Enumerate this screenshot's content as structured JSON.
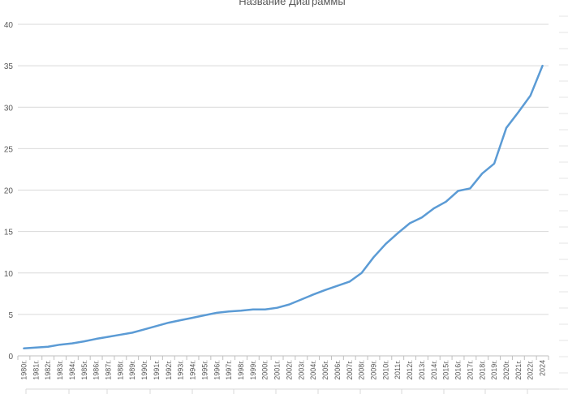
{
  "chart_data": {
    "type": "line",
    "title": "Название Диаграммы",
    "xlabel": "",
    "ylabel": "",
    "ylim": [
      0,
      40
    ],
    "yticks": [
      0,
      5,
      10,
      15,
      20,
      25,
      30,
      35,
      40
    ],
    "grid": true,
    "legend": "none",
    "line_color": "#5b9bd5",
    "categories": [
      "1980г.",
      "1981г.",
      "1982г.",
      "1983г.",
      "1984г.",
      "1985г.",
      "1986г.",
      "1987г.",
      "1988г.",
      "1989г.",
      "1990г.",
      "1991г.",
      "1992г.",
      "1993г.",
      "1994г.",
      "1995г.",
      "1996г.",
      "1997г.",
      "1998г.",
      "1999г.",
      "2000г.",
      "2001г.",
      "2002г.",
      "2003г.",
      "2004г.",
      "2005г.",
      "2006г.",
      "2007г.",
      "2008г.",
      "2009г.",
      "2010г.",
      "2011г.",
      "2012г.",
      "2013г.",
      "2014г.",
      "2015г.",
      "2016г.",
      "2017г.",
      "2018г.",
      "2019г.",
      "2020г.",
      "2021г.",
      "2022г.",
      "2024"
    ],
    "series": [
      {
        "values": [
          0.9,
          1.0,
          1.1,
          1.35,
          1.5,
          1.75,
          2.05,
          2.3,
          2.55,
          2.8,
          3.2,
          3.6,
          4.0,
          4.3,
          4.6,
          4.9,
          5.2,
          5.35,
          5.45,
          5.6,
          5.6,
          5.8,
          6.2,
          6.8,
          7.4,
          7.95,
          8.45,
          8.95,
          10.0,
          11.9,
          13.5,
          14.8,
          16.0,
          16.7,
          17.8,
          18.6,
          19.9,
          20.2,
          22.0,
          23.2,
          27.5,
          29.4,
          31.4,
          35.0
        ]
      }
    ]
  }
}
